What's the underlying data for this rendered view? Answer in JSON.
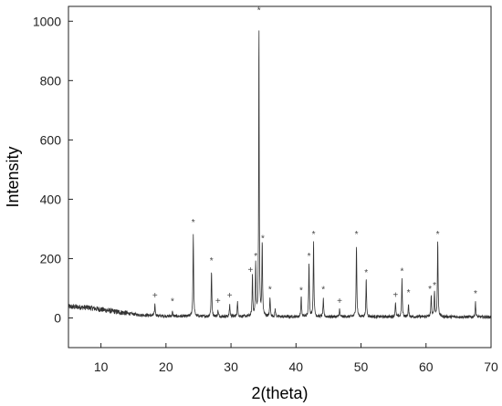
{
  "chart_data": {
    "type": "line",
    "title": "",
    "xlabel": "2(theta)",
    "ylabel": "Intensity",
    "xlim": [
      5,
      70
    ],
    "ylim": [
      -100,
      1050
    ],
    "x_ticks": [
      10,
      20,
      30,
      40,
      50,
      60,
      70
    ],
    "y_ticks": [
      0,
      200,
      400,
      600,
      800,
      1000
    ],
    "grid": false,
    "legend": "none",
    "line_color": "#333333",
    "background": [
      [
        5,
        38
      ],
      [
        8,
        35
      ],
      [
        12,
        22
      ],
      [
        16,
        10
      ],
      [
        20,
        6
      ],
      [
        25,
        5
      ],
      [
        30,
        5
      ],
      [
        40,
        4
      ],
      [
        50,
        4
      ],
      [
        60,
        4
      ],
      [
        70,
        3
      ]
    ],
    "peaks": [
      {
        "x": 18.3,
        "y": 40,
        "w": 0.12
      },
      {
        "x": 21.0,
        "y": 15,
        "w": 0.12
      },
      {
        "x": 24.2,
        "y": 280,
        "w": 0.12
      },
      {
        "x": 27.0,
        "y": 155,
        "w": 0.12
      },
      {
        "x": 28.0,
        "y": 20,
        "w": 0.12
      },
      {
        "x": 29.8,
        "y": 40,
        "w": 0.12
      },
      {
        "x": 31.0,
        "y": 50,
        "w": 0.12
      },
      {
        "x": 33.3,
        "y": 140,
        "w": 0.12
      },
      {
        "x": 33.8,
        "y": 180,
        "w": 0.12
      },
      {
        "x": 34.3,
        "y": 995,
        "w": 0.1
      },
      {
        "x": 34.8,
        "y": 250,
        "w": 0.12
      },
      {
        "x": 36.0,
        "y": 65,
        "w": 0.12
      },
      {
        "x": 36.8,
        "y": 25,
        "w": 0.12
      },
      {
        "x": 40.8,
        "y": 70,
        "w": 0.12
      },
      {
        "x": 42.0,
        "y": 185,
        "w": 0.12
      },
      {
        "x": 42.7,
        "y": 255,
        "w": 0.12
      },
      {
        "x": 44.2,
        "y": 60,
        "w": 0.12
      },
      {
        "x": 46.7,
        "y": 25,
        "w": 0.12
      },
      {
        "x": 49.3,
        "y": 245,
        "w": 0.12
      },
      {
        "x": 50.8,
        "y": 125,
        "w": 0.12
      },
      {
        "x": 55.3,
        "y": 50,
        "w": 0.12
      },
      {
        "x": 56.3,
        "y": 125,
        "w": 0.12
      },
      {
        "x": 57.3,
        "y": 40,
        "w": 0.12
      },
      {
        "x": 60.8,
        "y": 75,
        "w": 0.12
      },
      {
        "x": 61.3,
        "y": 85,
        "w": 0.12
      },
      {
        "x": 61.8,
        "y": 260,
        "w": 0.12
      },
      {
        "x": 67.6,
        "y": 50,
        "w": 0.12
      }
    ],
    "annotations": [
      {
        "x": 18.3,
        "y": 78,
        "text": "+"
      },
      {
        "x": 21.0,
        "y": 58,
        "text": "*"
      },
      {
        "x": 24.2,
        "y": 325,
        "text": "*"
      },
      {
        "x": 27.0,
        "y": 195,
        "text": "*"
      },
      {
        "x": 28.0,
        "y": 60,
        "text": "+"
      },
      {
        "x": 29.8,
        "y": 78,
        "text": "+"
      },
      {
        "x": 33.0,
        "y": 165,
        "text": "+"
      },
      {
        "x": 33.8,
        "y": 210,
        "text": "*"
      },
      {
        "x": 34.3,
        "y": 1040,
        "text": "*"
      },
      {
        "x": 34.9,
        "y": 270,
        "text": "*"
      },
      {
        "x": 36.0,
        "y": 98,
        "text": "*"
      },
      {
        "x": 40.8,
        "y": 95,
        "text": "*"
      },
      {
        "x": 42.0,
        "y": 210,
        "text": "*"
      },
      {
        "x": 42.7,
        "y": 285,
        "text": "*"
      },
      {
        "x": 44.2,
        "y": 98,
        "text": "*"
      },
      {
        "x": 46.7,
        "y": 60,
        "text": "+"
      },
      {
        "x": 49.3,
        "y": 285,
        "text": "*"
      },
      {
        "x": 50.8,
        "y": 155,
        "text": "*"
      },
      {
        "x": 55.3,
        "y": 80,
        "text": "+"
      },
      {
        "x": 56.3,
        "y": 160,
        "text": "*"
      },
      {
        "x": 57.3,
        "y": 88,
        "text": "*"
      },
      {
        "x": 60.6,
        "y": 100,
        "text": "*"
      },
      {
        "x": 61.3,
        "y": 112,
        "text": "*"
      },
      {
        "x": 61.8,
        "y": 285,
        "text": "*"
      },
      {
        "x": 67.6,
        "y": 85,
        "text": "*"
      }
    ]
  }
}
